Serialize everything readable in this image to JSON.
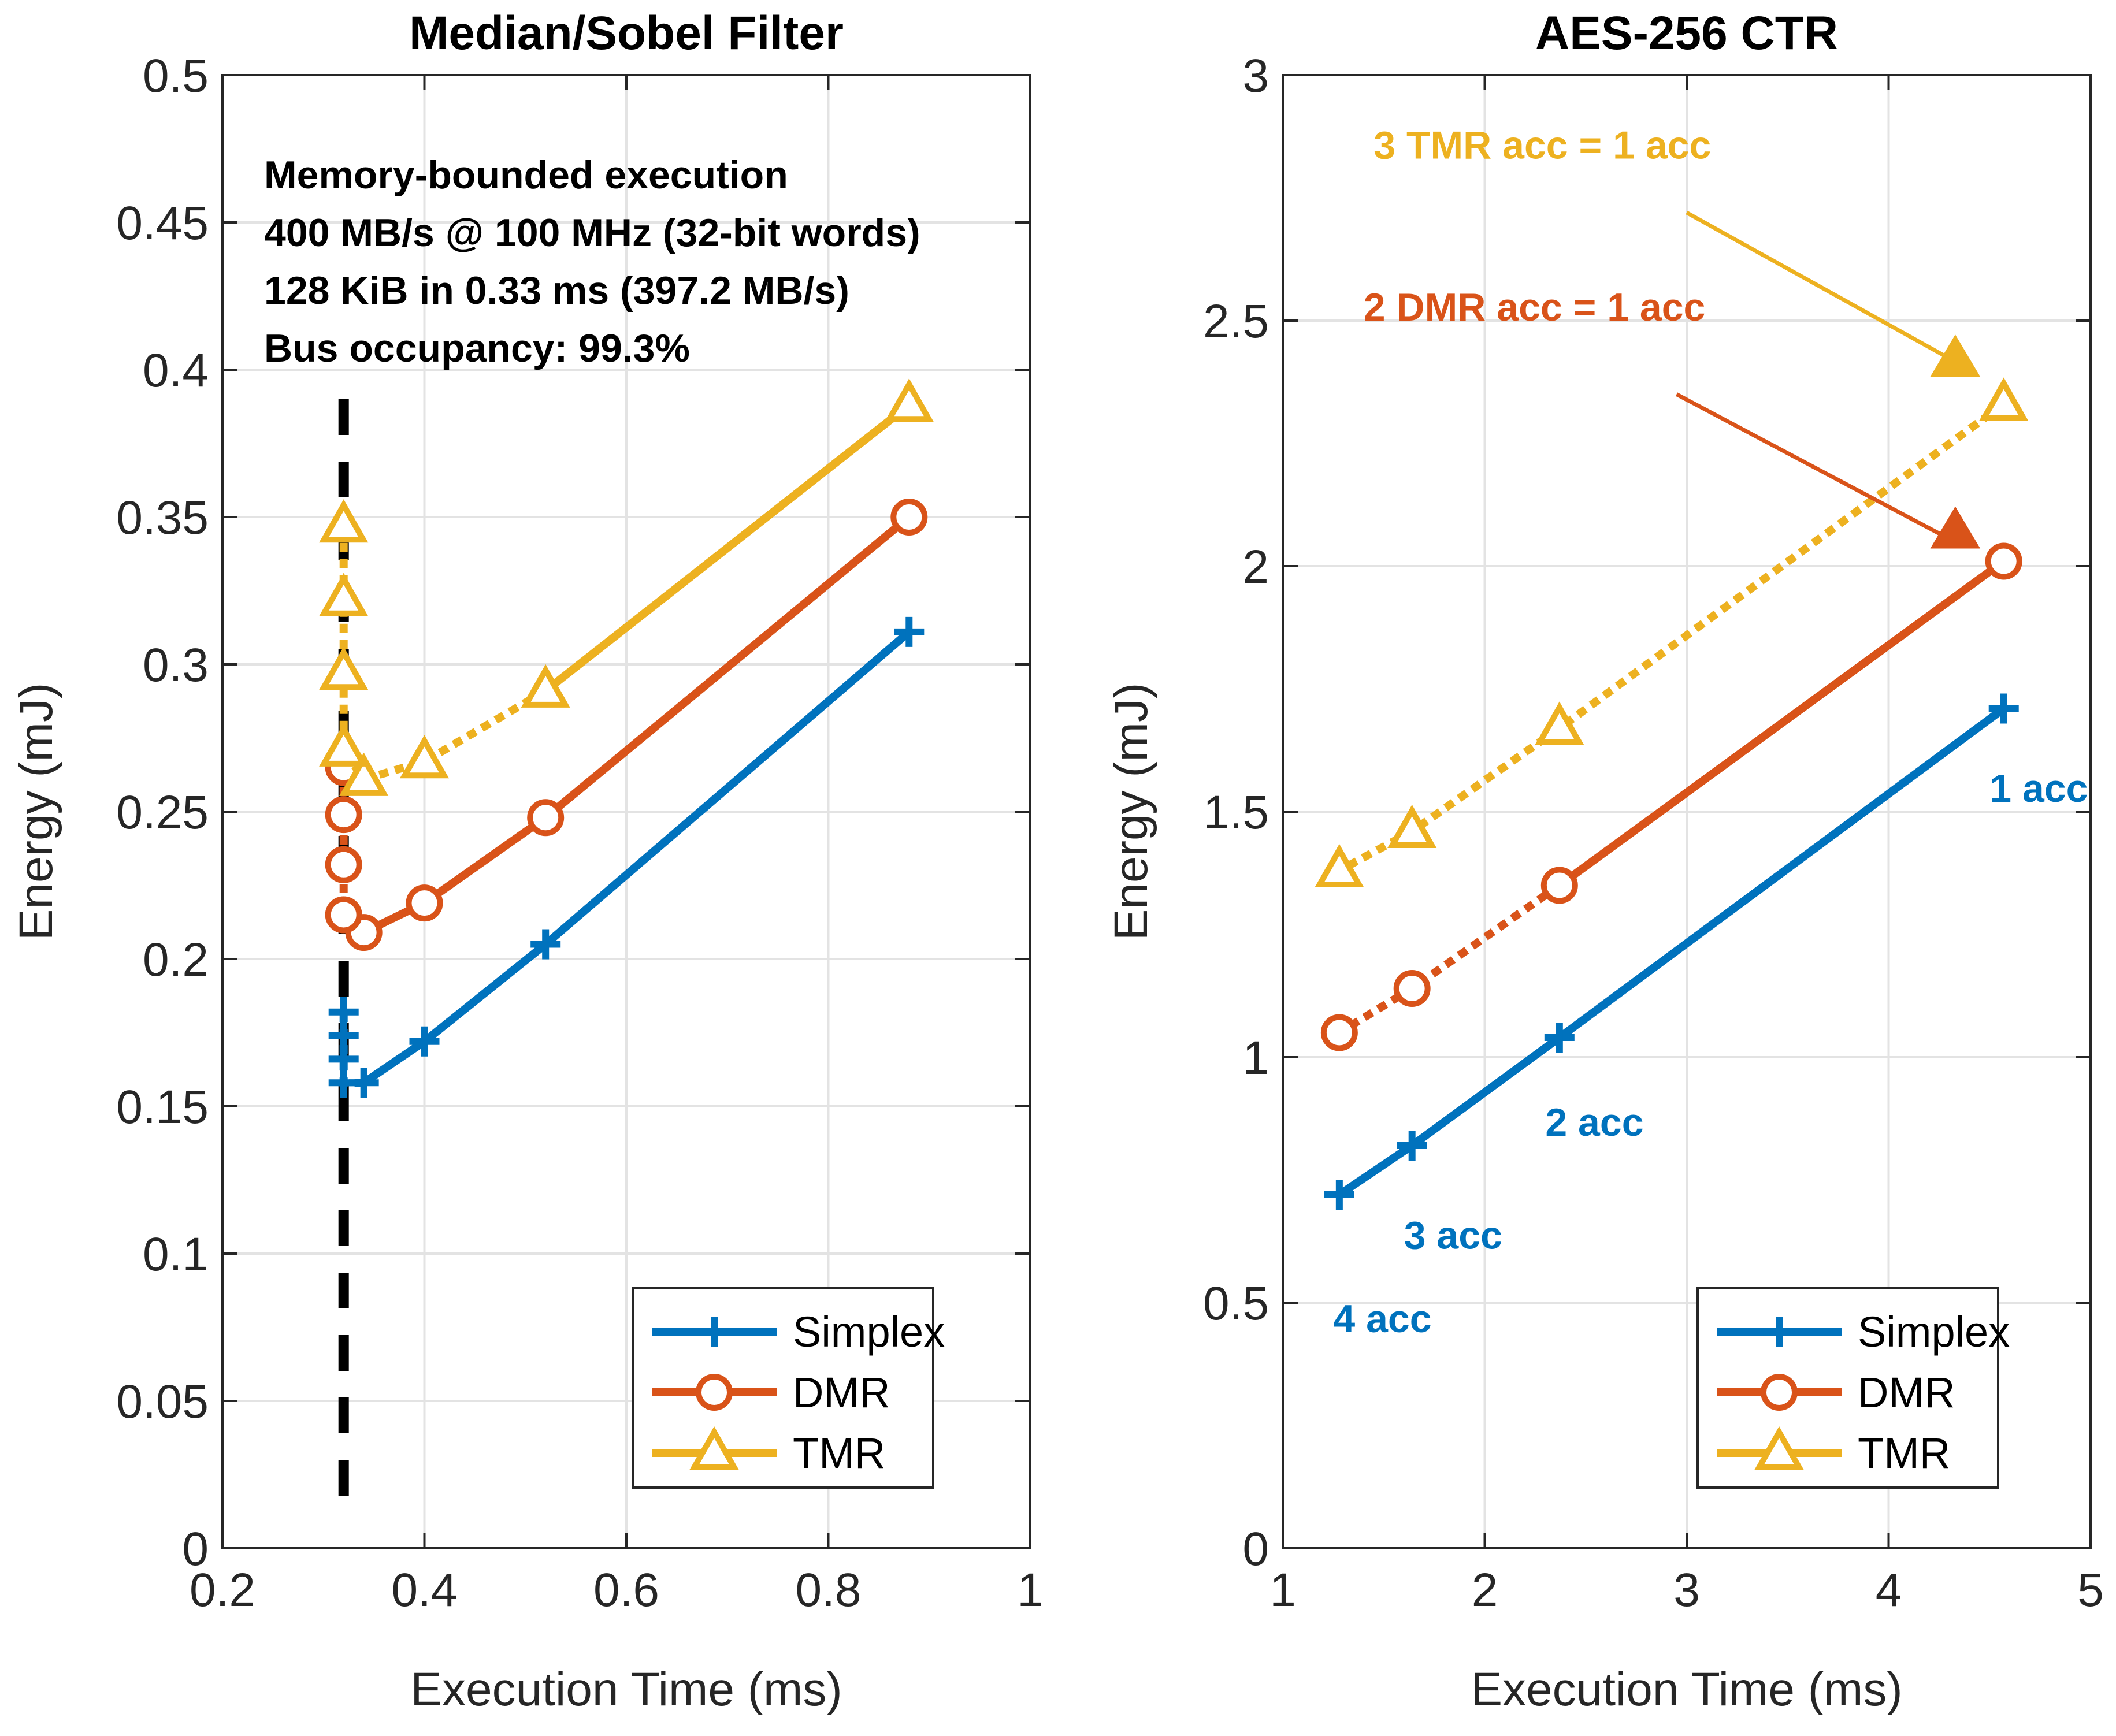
{
  "colors": {
    "simplex": "#0072BD",
    "dmr": "#D95319",
    "tmr": "#EDB120",
    "grid": "#e3e3e3",
    "axis": "#262626",
    "vline": "#000000"
  },
  "chart_data": [
    {
      "type": "line",
      "title": "Median/Sobel Filter",
      "xlabel": "Execution Time (ms)",
      "ylabel": "Energy (mJ)",
      "xlim": [
        0.2,
        1
      ],
      "ylim": [
        0,
        0.5
      ],
      "xticks": [
        0.2,
        0.4,
        0.6,
        0.8,
        1
      ],
      "xtick_labels": [
        "0.2",
        "0.4",
        "0.6",
        "0.8",
        "1"
      ],
      "yticks": [
        0,
        0.05,
        0.1,
        0.15,
        0.2,
        0.25,
        0.3,
        0.35,
        0.4,
        0.45,
        0.5
      ],
      "ytick_labels": [
        "0",
        "0.05",
        "0.1",
        "0.15",
        "0.2",
        "0.25",
        "0.3",
        "0.35",
        "0.4",
        "0.45",
        "0.5"
      ],
      "grid": true,
      "legend_position": "bottom-right",
      "vertical_line": {
        "x": 0.32,
        "style": "dashed"
      },
      "notes": [
        "Memory-bounded execution",
        "400 MB/s @ 100 MHz (32-bit words)",
        "128 KiB in 0.33 ms (397.2 MB/s)",
        "Bus occupancy: 99.3%"
      ],
      "series": [
        {
          "name": "Simplex",
          "marker": "plus",
          "color_key": "simplex",
          "solid": [
            [
              0.88,
              0.311
            ],
            [
              0.52,
              0.205
            ],
            [
              0.4,
              0.172
            ],
            [
              0.34,
              0.158
            ]
          ],
          "dotted": [
            [
              0.34,
              0.158
            ],
            [
              0.32,
              0.158
            ],
            [
              0.32,
              0.166
            ],
            [
              0.32,
              0.174
            ],
            [
              0.32,
              0.182
            ]
          ]
        },
        {
          "name": "DMR",
          "marker": "circle",
          "color_key": "dmr",
          "solid": [
            [
              0.88,
              0.35
            ],
            [
              0.52,
              0.248
            ],
            [
              0.4,
              0.219
            ],
            [
              0.34,
              0.209
            ]
          ],
          "dotted": [
            [
              0.34,
              0.209
            ],
            [
              0.32,
              0.215
            ],
            [
              0.32,
              0.232
            ],
            [
              0.32,
              0.249
            ],
            [
              0.32,
              0.265
            ]
          ]
        },
        {
          "name": "TMR",
          "marker": "triangle",
          "color_key": "tmr",
          "solid": [
            [
              0.88,
              0.388
            ],
            [
              0.52,
              0.291
            ]
          ],
          "dotted": [
            [
              0.52,
              0.291
            ],
            [
              0.4,
              0.267
            ],
            [
              0.34,
              0.261
            ],
            [
              0.32,
              0.271
            ],
            [
              0.32,
              0.297
            ],
            [
              0.32,
              0.322
            ],
            [
              0.32,
              0.347
            ]
          ]
        }
      ]
    },
    {
      "type": "line",
      "title": "AES-256 CTR",
      "xlabel": "Execution Time (ms)",
      "ylabel": "Energy (mJ)",
      "xlim": [
        1,
        5
      ],
      "ylim": [
        0,
        3
      ],
      "xticks": [
        1,
        2,
        3,
        4,
        5
      ],
      "xtick_labels": [
        "1",
        "2",
        "3",
        "4",
        "5"
      ],
      "yticks": [
        0,
        0.5,
        1,
        1.5,
        2,
        2.5,
        3
      ],
      "ytick_labels": [
        "0",
        "0.5",
        "1",
        "1.5",
        "2",
        "2.5",
        "3"
      ],
      "grid": true,
      "legend_position": "bottom-right",
      "series": [
        {
          "name": "Simplex",
          "marker": "plus",
          "color_key": "simplex",
          "solid": [
            [
              4.57,
              1.71
            ],
            [
              2.37,
              1.04
            ],
            [
              1.64,
              0.82
            ],
            [
              1.28,
              0.72
            ]
          ],
          "dotted": []
        },
        {
          "name": "DMR",
          "marker": "circle",
          "color_key": "dmr",
          "solid": [
            [
              4.57,
              2.01
            ],
            [
              2.37,
              1.35
            ]
          ],
          "dotted": [
            [
              2.37,
              1.35
            ],
            [
              1.64,
              1.14
            ],
            [
              1.28,
              1.05
            ]
          ]
        },
        {
          "name": "TMR",
          "marker": "triangle",
          "color_key": "tmr",
          "solid": [],
          "dotted": [
            [
              4.57,
              2.33
            ],
            [
              2.37,
              1.67
            ],
            [
              1.64,
              1.46
            ],
            [
              1.28,
              1.38
            ]
          ]
        }
      ],
      "extra_markers": [
        {
          "series": "TMR",
          "marker": "triangle-filled",
          "x": 4.33,
          "y": 2.42
        },
        {
          "series": "DMR",
          "marker": "triangle-filled",
          "x": 4.33,
          "y": 2.07
        }
      ],
      "annotations": [
        {
          "text": "3 TMR acc = 1 acc",
          "color_key": "tmr",
          "x": 1.45,
          "y": 2.83,
          "arrow_to": [
            4.27,
            2.43
          ],
          "arrow_from": [
            3.0,
            2.72
          ]
        },
        {
          "text": "2 DMR acc = 1 acc",
          "color_key": "dmr",
          "x": 1.4,
          "y": 2.5,
          "arrow_to": [
            4.28,
            2.06
          ],
          "arrow_from": [
            2.95,
            2.35
          ]
        },
        {
          "text": "1 acc",
          "color_key": "simplex",
          "x": 4.5,
          "y": 1.52
        },
        {
          "text": "2 acc",
          "color_key": "simplex",
          "x": 2.3,
          "y": 0.84
        },
        {
          "text": "3 acc",
          "color_key": "simplex",
          "x": 1.6,
          "y": 0.61
        },
        {
          "text": "4 acc",
          "color_key": "simplex",
          "x": 1.25,
          "y": 0.44
        }
      ]
    }
  ]
}
